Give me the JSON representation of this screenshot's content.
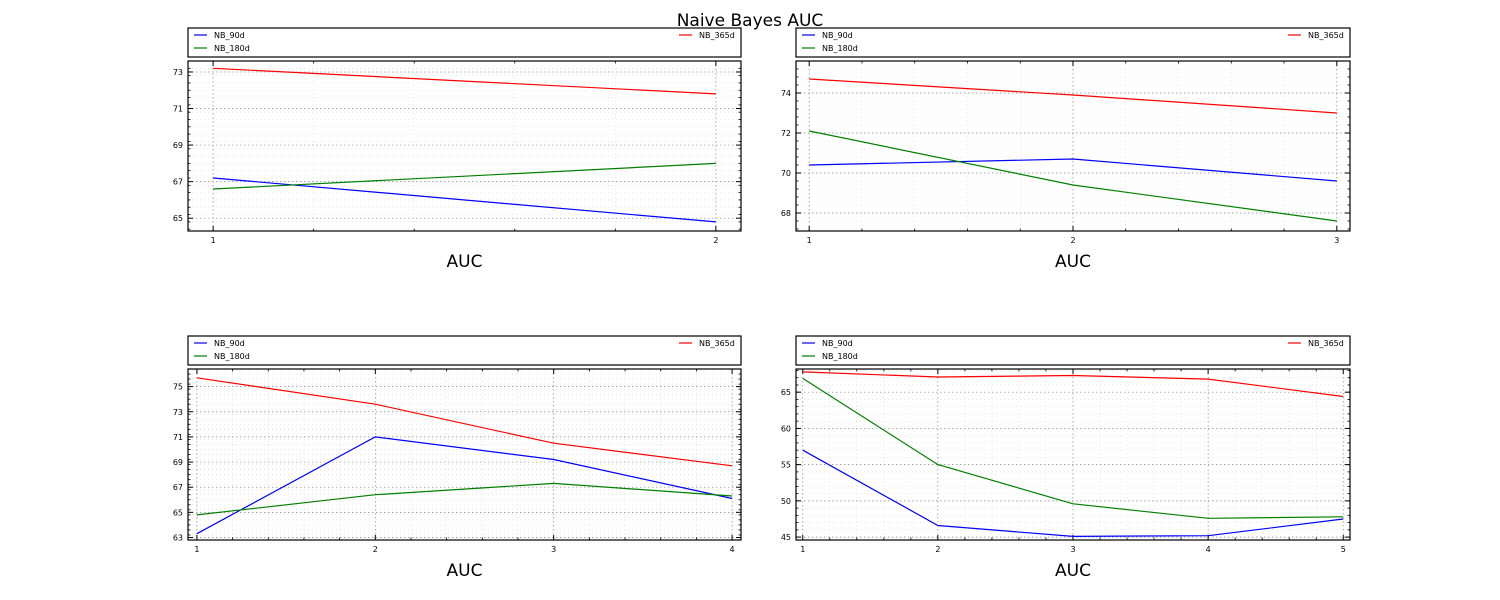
{
  "figure": {
    "title": "Naive Bayes AUC"
  },
  "chart_data": [
    {
      "type": "line",
      "xlabel": "AUC",
      "x": [
        1,
        2
      ],
      "xlim": [
        0.95,
        2.05
      ],
      "ylim": [
        64.3,
        73.6
      ],
      "yticks": [
        65,
        67,
        69,
        71,
        73
      ],
      "xticks": [
        1,
        2
      ],
      "grid": true,
      "legend": "top, above plot",
      "series": [
        {
          "name": "NB_90d",
          "color": "#0000ff",
          "values": [
            67.2,
            64.8
          ]
        },
        {
          "name": "NB_180d",
          "color": "#008000",
          "values": [
            66.6,
            68.0
          ]
        },
        {
          "name": "NB_365d",
          "color": "#ff0000",
          "values": [
            73.2,
            71.8
          ]
        }
      ]
    },
    {
      "type": "line",
      "xlabel": "AUC",
      "x": [
        1,
        2,
        3
      ],
      "xlim": [
        0.95,
        3.05
      ],
      "ylim": [
        67.1,
        75.6
      ],
      "yticks": [
        68,
        70,
        72,
        74
      ],
      "xticks": [
        1,
        2,
        3
      ],
      "grid": true,
      "legend": "top, above plot",
      "series": [
        {
          "name": "NB_90d",
          "color": "#0000ff",
          "values": [
            70.4,
            70.7,
            69.6
          ]
        },
        {
          "name": "NB_180d",
          "color": "#008000",
          "values": [
            72.1,
            69.4,
            67.6
          ]
        },
        {
          "name": "NB_365d",
          "color": "#ff0000",
          "values": [
            74.7,
            73.9,
            73.0
          ]
        }
      ]
    },
    {
      "type": "line",
      "xlabel": "AUC",
      "x": [
        1,
        2,
        3,
        4
      ],
      "xlim": [
        0.95,
        4.05
      ],
      "ylim": [
        62.8,
        76.4
      ],
      "yticks": [
        63,
        65,
        67,
        69,
        71,
        73,
        75
      ],
      "xticks": [
        1,
        2,
        3,
        4
      ],
      "grid": true,
      "legend": "top, above plot",
      "series": [
        {
          "name": "NB_90d",
          "color": "#0000ff",
          "values": [
            63.3,
            71.0,
            69.2,
            66.1
          ]
        },
        {
          "name": "NB_180d",
          "color": "#008000",
          "values": [
            64.8,
            66.4,
            67.3,
            66.3
          ]
        },
        {
          "name": "NB_365d",
          "color": "#ff0000",
          "values": [
            75.7,
            73.6,
            70.5,
            68.7
          ]
        }
      ]
    },
    {
      "type": "line",
      "xlabel": "AUC",
      "x": [
        1,
        2,
        3,
        4,
        5
      ],
      "xlim": [
        0.95,
        5.05
      ],
      "ylim": [
        44.6,
        68.2
      ],
      "yticks": [
        45,
        50,
        55,
        60,
        65
      ],
      "xticks": [
        1,
        2,
        3,
        4,
        5
      ],
      "grid": true,
      "legend": "top, above plot",
      "series": [
        {
          "name": "NB_90d",
          "color": "#0000ff",
          "values": [
            57.0,
            46.6,
            45.1,
            45.2,
            47.5
          ]
        },
        {
          "name": "NB_180d",
          "color": "#008000",
          "values": [
            66.9,
            55.0,
            49.6,
            47.6,
            47.8
          ]
        },
        {
          "name": "NB_365d",
          "color": "#ff0000",
          "values": [
            67.8,
            67.1,
            67.3,
            66.8,
            64.4
          ]
        }
      ]
    }
  ]
}
